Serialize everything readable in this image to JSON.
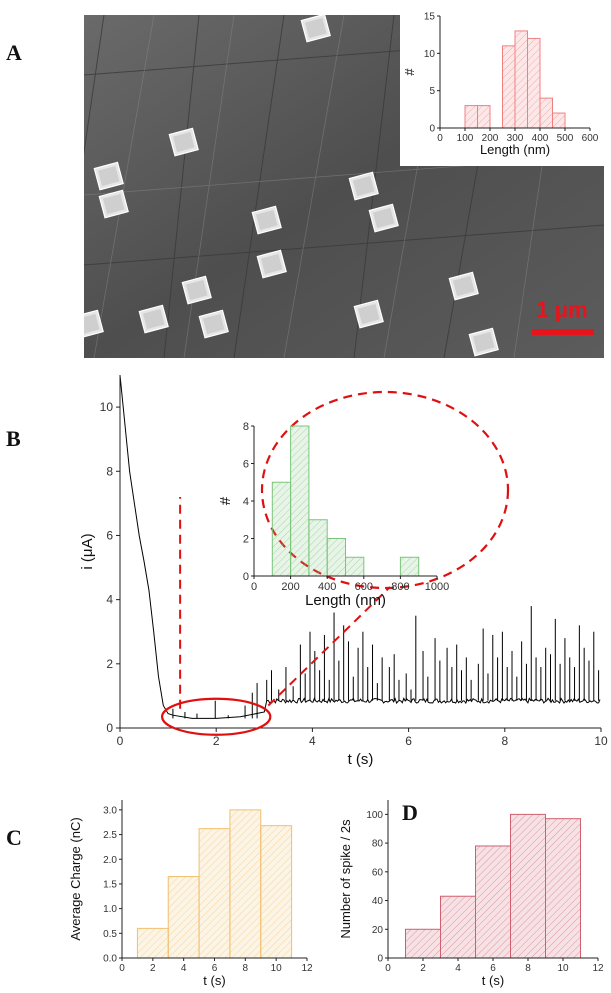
{
  "panels": {
    "a": "A",
    "b": "B",
    "c": "C",
    "d": "D"
  },
  "micrograph": {
    "scalebar_label": "1 μm",
    "colors": {
      "background": "#5a5a5a",
      "scalebar": "#e8141c",
      "crystal": "#e6e6e6"
    }
  },
  "chart_data": [
    {
      "id": "A_inset",
      "type": "bar",
      "xlabel": "Length (nm)",
      "ylabel": "#",
      "xlim": [
        0,
        600
      ],
      "ylim": [
        0,
        15
      ],
      "xticks": [
        0,
        100,
        200,
        300,
        400,
        500,
        600
      ],
      "yticks": [
        0,
        5,
        10,
        15
      ],
      "bin_width": 50,
      "bins": [
        {
          "x": 100,
          "value": 3
        },
        {
          "x": 150,
          "value": 3
        },
        {
          "x": 250,
          "value": 11
        },
        {
          "x": 300,
          "value": 13
        },
        {
          "x": 350,
          "value": 12
        },
        {
          "x": 400,
          "value": 4
        },
        {
          "x": 450,
          "value": 2
        }
      ],
      "color": "#f08080"
    },
    {
      "id": "B_trace",
      "type": "line",
      "xlabel": "t (s)",
      "ylabel": "i (μA)",
      "xlim": [
        0,
        10
      ],
      "ylim": [
        0,
        11
      ],
      "xticks": [
        0,
        2,
        4,
        6,
        8,
        10
      ],
      "yticks": [
        0,
        2,
        4,
        6,
        8,
        10
      ],
      "decay": {
        "x": [
          0.0,
          0.1,
          0.2,
          0.3,
          0.4,
          0.5,
          0.6,
          0.7,
          0.8,
          0.9,
          1.0,
          1.1,
          1.5,
          2.0,
          2.5,
          3.0
        ],
        "y": [
          11.0,
          9.5,
          8.0,
          7.0,
          6.0,
          5.2,
          4.3,
          3.0,
          1.6,
          0.7,
          0.45,
          0.4,
          0.3,
          0.3,
          0.35,
          0.5
        ]
      },
      "baseline_after": 0.85,
      "spikes": {
        "x": [
          1.1,
          1.35,
          1.6,
          1.98,
          2.25,
          2.6,
          2.75,
          2.85,
          3.05,
          3.15,
          3.3,
          3.45,
          3.6,
          3.75,
          3.85,
          3.95,
          4.05,
          4.15,
          4.25,
          4.35,
          4.45,
          4.55,
          4.65,
          4.75,
          4.85,
          4.95,
          5.05,
          5.15,
          5.25,
          5.35,
          5.45,
          5.6,
          5.7,
          5.8,
          5.95,
          6.05,
          6.15,
          6.3,
          6.4,
          6.55,
          6.65,
          6.8,
          6.9,
          7.0,
          7.1,
          7.2,
          7.3,
          7.45,
          7.55,
          7.65,
          7.75,
          7.85,
          7.95,
          8.05,
          8.15,
          8.25,
          8.35,
          8.45,
          8.55,
          8.65,
          8.75,
          8.85,
          8.95,
          9.05,
          9.15,
          9.25,
          9.35,
          9.45,
          9.55,
          9.65,
          9.75,
          9.85,
          9.95
        ],
        "y": [
          0.6,
          0.5,
          0.45,
          0.85,
          0.4,
          0.7,
          1.1,
          1.4,
          1.5,
          1.8,
          1.2,
          1.9,
          1.3,
          2.6,
          1.7,
          3.0,
          2.4,
          1.8,
          2.9,
          1.5,
          3.6,
          2.1,
          3.2,
          2.7,
          1.6,
          2.5,
          3.0,
          1.9,
          2.6,
          1.4,
          2.2,
          1.9,
          2.3,
          1.5,
          1.7,
          1.2,
          3.5,
          2.4,
          1.6,
          2.8,
          2.1,
          2.5,
          1.9,
          2.6,
          1.8,
          2.2,
          1.5,
          2.0,
          3.1,
          1.7,
          2.9,
          2.2,
          3.0,
          1.9,
          2.4,
          1.6,
          2.7,
          2.0,
          3.8,
          2.2,
          1.9,
          2.5,
          2.3,
          3.4,
          2.0,
          2.8,
          2.2,
          1.9,
          3.2,
          2.5,
          2.1,
          3.0,
          1.8
        ]
      },
      "color": "#000000"
    },
    {
      "id": "B_inset",
      "type": "bar",
      "xlabel": "Length (nm)",
      "ylabel": "#",
      "xlim": [
        0,
        1000
      ],
      "ylim": [
        0,
        8
      ],
      "xticks": [
        0,
        200,
        400,
        600,
        800,
        1000
      ],
      "yticks": [
        0,
        2,
        4,
        6,
        8
      ],
      "bin_width": 100,
      "bins": [
        {
          "x": 100,
          "value": 5
        },
        {
          "x": 200,
          "value": 8
        },
        {
          "x": 300,
          "value": 3
        },
        {
          "x": 400,
          "value": 2
        },
        {
          "x": 500,
          "value": 1
        },
        {
          "x": 800,
          "value": 1
        }
      ],
      "color": "#7cc47c"
    },
    {
      "id": "C",
      "type": "bar",
      "xlabel": "t (s)",
      "ylabel": "Average Charge (nC)",
      "xlim": [
        0,
        12
      ],
      "ylim": [
        0,
        3.2
      ],
      "xticks": [
        0,
        2,
        4,
        6,
        8,
        10,
        12
      ],
      "yticks": [
        0.0,
        0.5,
        1.0,
        1.5,
        2.0,
        2.5,
        3.0
      ],
      "ytick_labels": [
        "0.0",
        "0.5",
        "1.0",
        "1.5",
        "2.0",
        "2.5",
        "3.0"
      ],
      "bin_width": 2,
      "bins": [
        {
          "x": 1,
          "value": 0.6
        },
        {
          "x": 3,
          "value": 1.65
        },
        {
          "x": 5,
          "value": 2.62
        },
        {
          "x": 7,
          "value": 3.0
        },
        {
          "x": 9,
          "value": 2.68
        }
      ],
      "color": "#f0c070"
    },
    {
      "id": "D",
      "type": "bar",
      "xlabel": "t (s)",
      "ylabel": "Number of spike / 2s",
      "xlim": [
        0,
        12
      ],
      "ylim": [
        0,
        110
      ],
      "xticks": [
        0,
        2,
        4,
        6,
        8,
        10,
        12
      ],
      "yticks": [
        0,
        20,
        40,
        60,
        80,
        100
      ],
      "bin_width": 2,
      "bins": [
        {
          "x": 1,
          "value": 20
        },
        {
          "x": 3,
          "value": 43
        },
        {
          "x": 5,
          "value": 78
        },
        {
          "x": 7,
          "value": 100
        },
        {
          "x": 9,
          "value": 97
        }
      ],
      "color": "#d06070"
    }
  ],
  "annotation_color": "#e01010"
}
